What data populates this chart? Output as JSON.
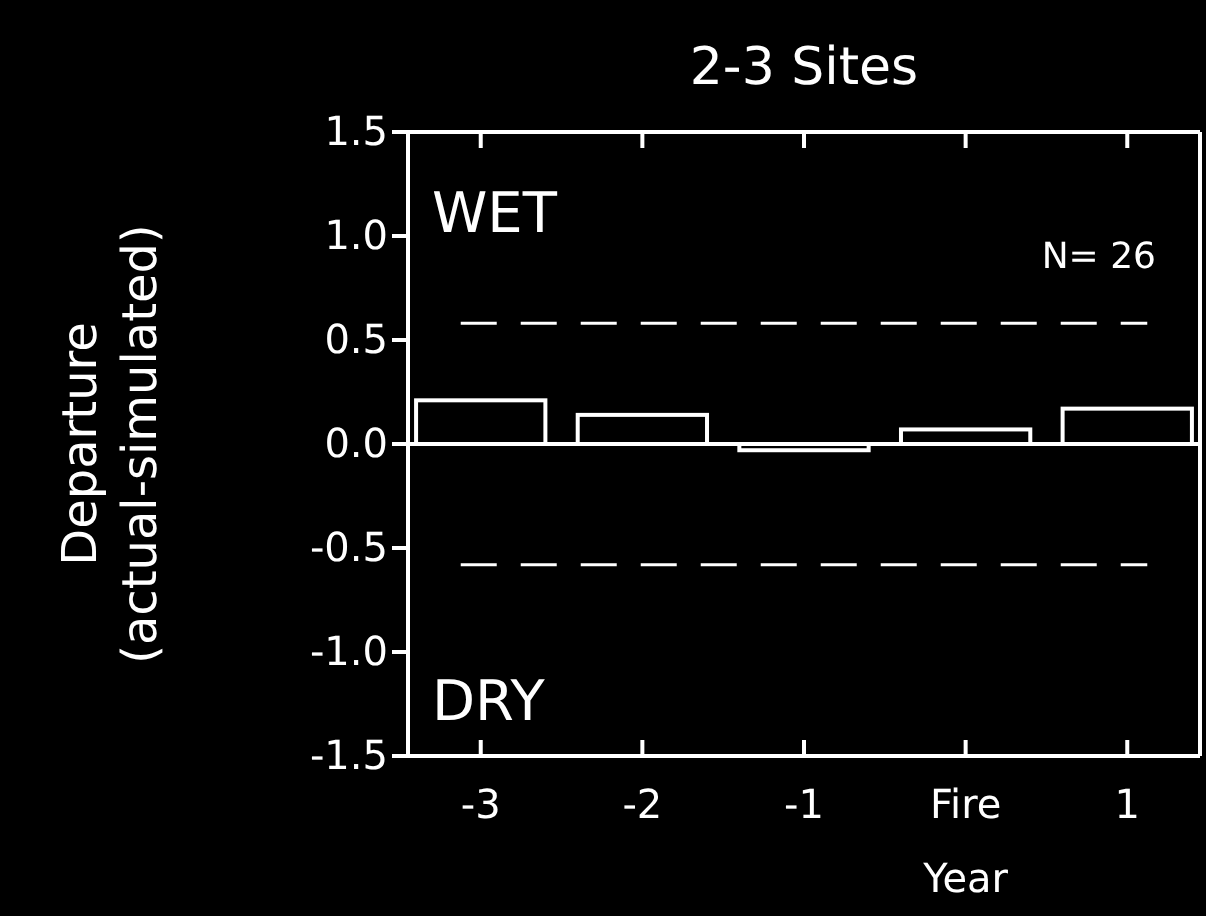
{
  "chart_data": {
    "type": "bar",
    "title": "2-3 Sites",
    "xlabel": "Year",
    "ylabel": "Departure\n(actual-simulated)",
    "categories": [
      "-3",
      "-2",
      "-1",
      "Fire",
      "1"
    ],
    "values": [
      0.21,
      0.14,
      -0.03,
      0.07,
      0.17
    ],
    "color": "#ffffff",
    "ylim": [
      -1.5,
      1.5
    ],
    "yticks": [
      {
        "value": -1.5,
        "label": "-1.5"
      },
      {
        "value": -1.0,
        "label": "-1.0"
      },
      {
        "value": -0.5,
        "label": "-0.5"
      },
      {
        "value": 0,
        "label": "0.0"
      },
      {
        "value": 0.5,
        "label": "0.5"
      },
      {
        "value": 1.0,
        "label": "1.0"
      },
      {
        "value": 1.5,
        "label": "1.5"
      }
    ],
    "ref_lines": [
      {
        "axis": "y",
        "value": 0.58,
        "line_style": "dashed"
      },
      {
        "axis": "y",
        "value": -0.58,
        "line_style": "dashed"
      }
    ],
    "annotations": [
      "WET",
      "DRY",
      "N= 26"
    ],
    "stacked": false
  }
}
